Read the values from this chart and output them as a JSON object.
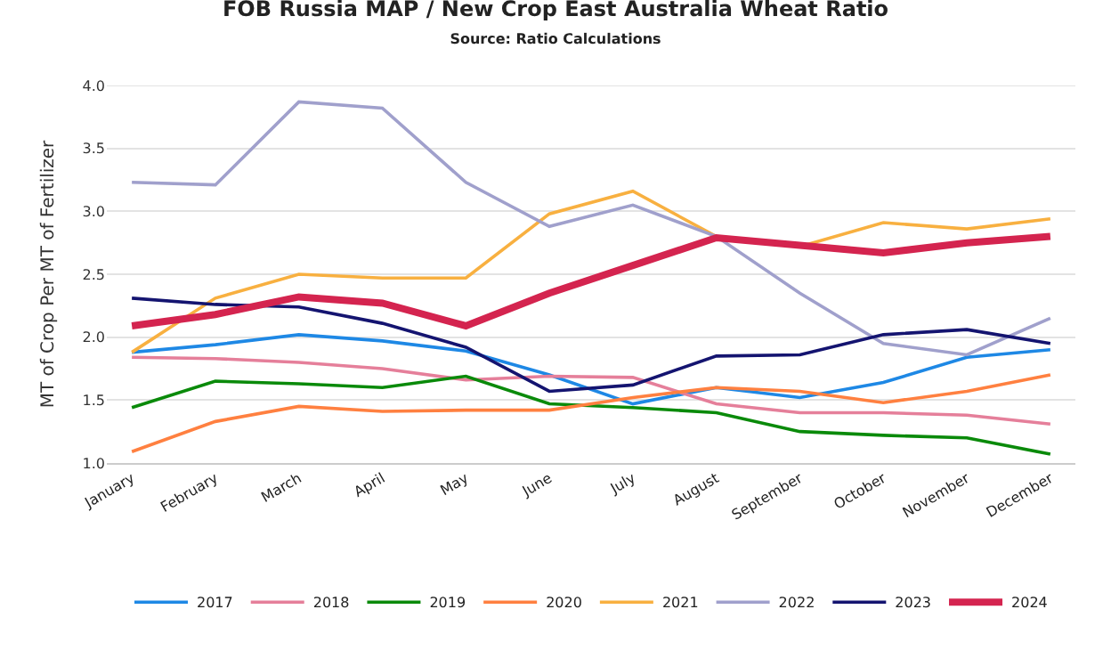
{
  "chart_data": {
    "type": "line",
    "title": "FOB Russia MAP / New Crop East Australia Wheat Ratio",
    "subtitle": "Source: Ratio Calculations",
    "ylabel": "MT of Crop Per MT of Fertilizer",
    "categories": [
      "January",
      "February",
      "March",
      "April",
      "May",
      "June",
      "July",
      "August",
      "September",
      "October",
      "November",
      "December"
    ],
    "series": [
      {
        "name": "2017",
        "color": "#1e88e5",
        "values": [
          1.88,
          1.94,
          2.02,
          1.97,
          1.89,
          1.7,
          1.47,
          1.6,
          1.52,
          1.64,
          1.84,
          1.9
        ]
      },
      {
        "name": "2018",
        "color": "#e57f9a",
        "values": [
          1.84,
          1.83,
          1.8,
          1.75,
          1.66,
          1.69,
          1.68,
          1.47,
          1.4,
          1.4,
          1.38,
          1.31
        ]
      },
      {
        "name": "2019",
        "color": "#0a8a0a",
        "values": [
          1.44,
          1.65,
          1.63,
          1.6,
          1.69,
          1.47,
          1.44,
          1.4,
          1.25,
          1.22,
          1.2,
          1.07
        ]
      },
      {
        "name": "2020",
        "color": "#ff8040",
        "values": [
          1.09,
          1.33,
          1.45,
          1.41,
          1.42,
          1.42,
          1.52,
          1.6,
          1.57,
          1.48,
          1.57,
          1.7
        ]
      },
      {
        "name": "2021",
        "color": "#f8b040",
        "values": [
          1.88,
          2.31,
          2.5,
          2.47,
          2.47,
          2.98,
          3.16,
          2.8,
          2.72,
          2.91,
          2.86,
          2.94
        ]
      },
      {
        "name": "2022",
        "color": "#a0a0cc",
        "values": [
          3.23,
          3.21,
          3.87,
          3.82,
          3.23,
          2.88,
          3.05,
          2.8,
          2.35,
          1.95,
          1.86,
          2.15
        ]
      },
      {
        "name": "2023",
        "color": "#141470",
        "values": [
          2.31,
          2.26,
          2.24,
          2.11,
          1.92,
          1.57,
          1.62,
          1.85,
          1.86,
          2.02,
          2.06,
          1.95
        ]
      },
      {
        "name": "2024",
        "color": "#d4244f",
        "values": [
          2.09,
          2.18,
          2.32,
          2.27,
          2.09,
          2.35,
          2.57,
          2.79,
          2.73,
          2.67,
          2.75,
          2.8
        ]
      }
    ],
    "ylim": [
      1.0,
      4.0
    ],
    "yticks": [
      {
        "value": 1,
        "label": "1.0"
      },
      {
        "value": 1.5,
        "label": "1.5"
      },
      {
        "value": 2,
        "label": "2.0"
      },
      {
        "value": 2.5,
        "label": "2.5"
      },
      {
        "value": 3,
        "label": "3.0"
      },
      {
        "value": 3.5,
        "label": "3.5"
      },
      {
        "value": 4,
        "label": "4.0"
      }
    ],
    "grid": "y",
    "legend": "bottom",
    "marker": "none",
    "line_style": "solid"
  }
}
